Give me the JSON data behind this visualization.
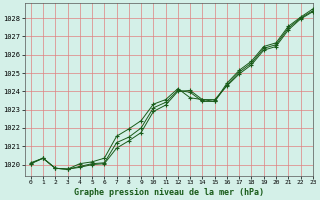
{
  "title": "Graphe pression niveau de la mer (hPa)",
  "background_color": "#d4f0e8",
  "grid_color": "#e08080",
  "line_color1": "#1a5c1a",
  "line_color2": "#1a5c1a",
  "line_color3": "#1a5c1a",
  "xlim": [
    -0.5,
    23
  ],
  "ylim": [
    1019.4,
    1028.8
  ],
  "yticks": [
    1020,
    1021,
    1022,
    1023,
    1024,
    1025,
    1026,
    1027,
    1028
  ],
  "xticks": [
    0,
    1,
    2,
    3,
    4,
    5,
    6,
    7,
    8,
    9,
    10,
    11,
    12,
    13,
    14,
    15,
    16,
    17,
    18,
    19,
    20,
    21,
    22,
    23
  ],
  "series1": [
    1020.1,
    1020.35,
    1019.8,
    1019.75,
    1019.85,
    1020.0,
    1020.05,
    1020.9,
    1021.3,
    1021.75,
    1022.9,
    1023.25,
    1024.0,
    1024.05,
    1023.55,
    1023.55,
    1024.3,
    1024.95,
    1025.45,
    1026.25,
    1026.45,
    1027.35,
    1027.95,
    1028.35
  ],
  "series2": [
    1020.05,
    1020.35,
    1019.8,
    1019.75,
    1019.9,
    1020.05,
    1020.1,
    1021.2,
    1021.5,
    1022.0,
    1023.1,
    1023.4,
    1024.05,
    1023.95,
    1023.45,
    1023.45,
    1024.35,
    1025.05,
    1025.55,
    1026.35,
    1026.55,
    1027.45,
    1028.0,
    1028.4
  ],
  "series3": [
    1020.05,
    1020.35,
    1019.8,
    1019.75,
    1020.05,
    1020.15,
    1020.35,
    1021.55,
    1021.95,
    1022.4,
    1023.3,
    1023.55,
    1024.15,
    1023.65,
    1023.55,
    1023.45,
    1024.45,
    1025.15,
    1025.65,
    1026.45,
    1026.65,
    1027.55,
    1028.05,
    1028.5
  ],
  "title_fontsize": 6,
  "tick_fontsize": 5
}
